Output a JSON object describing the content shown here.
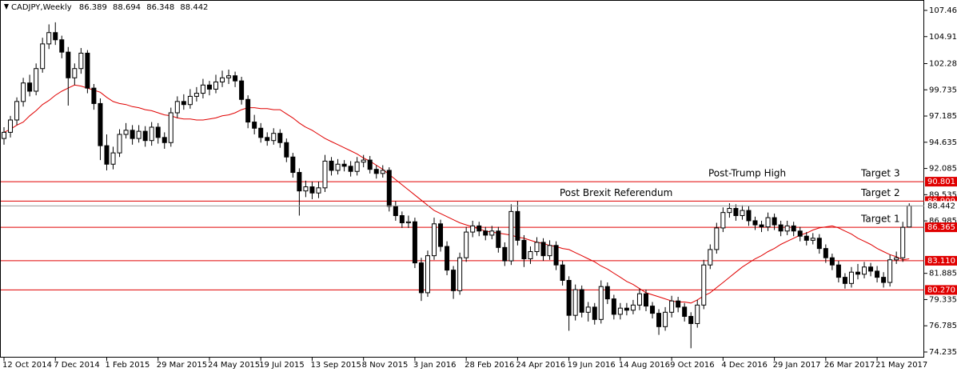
{
  "chart_data": {
    "type": "candlestick",
    "title": "CADJPY,Weekly",
    "ylim": [
      73.69,
      108.47
    ],
    "yticks": [
      {
        "value": 107.46,
        "label": "107.460"
      },
      {
        "value": 104.91,
        "label": "104.910"
      },
      102.285,
      99.735,
      97.185,
      94.635,
      92.085,
      89.535,
      86.985,
      81.885,
      79.335,
      76.785,
      74.235
    ],
    "categories": [
      "12 Oct 2014",
      null,
      null,
      null,
      null,
      null,
      null,
      null,
      "7 Dec 2014",
      null,
      null,
      null,
      null,
      null,
      null,
      null,
      "1 Feb 2015",
      null,
      null,
      null,
      null,
      null,
      null,
      null,
      "29 Mar 2015",
      null,
      null,
      null,
      null,
      null,
      null,
      null,
      "24 May 2015",
      null,
      null,
      null,
      null,
      null,
      null,
      null,
      "19 Jul 2015",
      null,
      null,
      null,
      null,
      null,
      null,
      null,
      "13 Sep 2015",
      null,
      null,
      null,
      null,
      null,
      null,
      null,
      "8 Nov 2015",
      null,
      null,
      null,
      null,
      null,
      null,
      null,
      "3 Jan 2016",
      null,
      null,
      null,
      null,
      null,
      null,
      null,
      "28 Feb 2016",
      null,
      null,
      null,
      null,
      null,
      null,
      null,
      "24 Apr 2016",
      null,
      null,
      null,
      null,
      null,
      null,
      null,
      "19 Jun 2016",
      null,
      null,
      null,
      null,
      null,
      null,
      null,
      "14 Aug 2016",
      null,
      null,
      null,
      null,
      null,
      null,
      null,
      "9 Oct 2016",
      null,
      null,
      null,
      null,
      null,
      null,
      null,
      "4 Dec 2016",
      null,
      null,
      null,
      null,
      null,
      null,
      null,
      "29 Jan 2017",
      null,
      null,
      null,
      null,
      null,
      null,
      null,
      "26 Mar 2017",
      null,
      null,
      null,
      null,
      null,
      null,
      null,
      "21 May 2017",
      null,
      null,
      null,
      null,
      null
    ],
    "ohlc": [
      [
        95.0,
        96.1,
        94.4,
        95.6
      ],
      [
        95.6,
        97.2,
        95.1,
        96.8
      ],
      [
        96.8,
        99.0,
        96.3,
        98.6
      ],
      [
        98.6,
        100.9,
        98.1,
        100.4
      ],
      [
        100.4,
        101.2,
        99.1,
        99.6
      ],
      [
        99.6,
        102.3,
        99.2,
        101.8
      ],
      [
        101.8,
        104.8,
        101.4,
        104.2
      ],
      [
        104.2,
        106.1,
        103.7,
        105.3
      ],
      [
        105.3,
        106.3,
        104.1,
        104.6
      ],
      [
        104.6,
        105.0,
        102.8,
        103.4
      ],
      [
        103.4,
        103.9,
        98.2,
        100.9
      ],
      [
        100.9,
        102.3,
        100.2,
        101.8
      ],
      [
        101.8,
        103.8,
        101.3,
        103.3
      ],
      [
        103.3,
        103.6,
        99.4,
        99.9
      ],
      [
        99.9,
        100.3,
        97.8,
        98.4
      ],
      [
        98.4,
        98.9,
        92.9,
        94.3
      ],
      [
        94.3,
        95.4,
        91.9,
        92.5
      ],
      [
        92.5,
        94.2,
        92.0,
        93.6
      ],
      [
        93.6,
        95.9,
        93.2,
        95.4
      ],
      [
        95.4,
        96.5,
        95.0,
        95.8
      ],
      [
        95.8,
        96.3,
        94.4,
        95.0
      ],
      [
        95.0,
        96.3,
        94.6,
        95.7
      ],
      [
        95.7,
        96.2,
        94.2,
        94.8
      ],
      [
        94.8,
        96.6,
        94.3,
        96.1
      ],
      [
        96.1,
        96.5,
        94.5,
        95.1
      ],
      [
        95.1,
        95.6,
        94.0,
        94.6
      ],
      [
        94.6,
        98.0,
        94.2,
        97.5
      ],
      [
        97.5,
        99.1,
        97.0,
        98.6
      ],
      [
        98.6,
        99.3,
        97.8,
        98.3
      ],
      [
        98.3,
        99.8,
        97.9,
        99.1
      ],
      [
        99.1,
        100.0,
        98.6,
        99.4
      ],
      [
        99.4,
        100.8,
        98.9,
        100.2
      ],
      [
        100.2,
        100.6,
        99.2,
        99.8
      ],
      [
        99.8,
        101.2,
        99.4,
        100.5
      ],
      [
        100.5,
        101.6,
        100.0,
        100.9
      ],
      [
        100.9,
        101.7,
        100.3,
        101.1
      ],
      [
        101.1,
        101.5,
        100.0,
        100.6
      ],
      [
        100.6,
        101.0,
        98.3,
        98.8
      ],
      [
        98.8,
        99.2,
        96.0,
        96.6
      ],
      [
        96.6,
        97.3,
        95.4,
        96.0
      ],
      [
        96.0,
        96.5,
        94.6,
        95.1
      ],
      [
        95.1,
        95.6,
        94.3,
        94.8
      ],
      [
        94.8,
        96.0,
        94.4,
        95.5
      ],
      [
        95.5,
        95.9,
        94.1,
        94.6
      ],
      [
        94.6,
        95.0,
        92.7,
        93.2
      ],
      [
        93.2,
        93.6,
        91.2,
        91.7
      ],
      [
        91.7,
        92.1,
        87.5,
        89.9
      ],
      [
        89.9,
        90.9,
        89.3,
        90.3
      ],
      [
        90.3,
        90.8,
        89.1,
        89.7
      ],
      [
        89.7,
        90.8,
        89.2,
        90.2
      ],
      [
        90.2,
        93.4,
        89.8,
        92.8
      ],
      [
        92.8,
        93.2,
        91.4,
        91.9
      ],
      [
        91.9,
        93.0,
        91.5,
        92.5
      ],
      [
        92.5,
        92.9,
        91.8,
        92.3
      ],
      [
        92.3,
        92.8,
        91.3,
        91.8
      ],
      [
        91.8,
        93.2,
        91.4,
        92.7
      ],
      [
        92.7,
        93.4,
        92.2,
        92.9
      ],
      [
        92.9,
        93.3,
        91.6,
        92.0
      ],
      [
        92.0,
        92.4,
        91.1,
        91.6
      ],
      [
        91.6,
        92.4,
        91.2,
        91.9
      ],
      [
        91.9,
        92.2,
        87.9,
        88.4
      ],
      [
        88.4,
        88.9,
        87.0,
        87.5
      ],
      [
        87.5,
        87.9,
        86.3,
        86.8
      ],
      [
        86.8,
        87.5,
        86.3,
        86.9
      ],
      [
        86.9,
        87.3,
        82.4,
        82.9
      ],
      [
        82.9,
        83.4,
        79.2,
        80.0
      ],
      [
        80.0,
        84.1,
        79.6,
        83.6
      ],
      [
        83.6,
        87.3,
        83.2,
        86.7
      ],
      [
        86.7,
        87.1,
        84.0,
        84.5
      ],
      [
        84.5,
        85.0,
        81.7,
        82.2
      ],
      [
        82.2,
        82.6,
        79.4,
        80.2
      ],
      [
        80.2,
        83.9,
        79.8,
        83.4
      ],
      [
        83.4,
        86.4,
        83.0,
        85.9
      ],
      [
        85.9,
        87.0,
        85.4,
        86.5
      ],
      [
        86.5,
        86.9,
        85.5,
        86.0
      ],
      [
        86.0,
        86.4,
        85.1,
        85.6
      ],
      [
        85.6,
        86.5,
        85.2,
        86.0
      ],
      [
        86.0,
        86.4,
        83.9,
        84.4
      ],
      [
        84.4,
        84.9,
        82.6,
        83.1
      ],
      [
        83.1,
        88.6,
        82.7,
        87.9
      ],
      [
        87.9,
        88.9,
        84.6,
        85.1
      ],
      [
        85.1,
        85.6,
        82.5,
        83.3
      ],
      [
        83.3,
        84.5,
        82.8,
        84.0
      ],
      [
        84.0,
        85.4,
        83.6,
        84.9
      ],
      [
        84.9,
        85.3,
        83.1,
        83.6
      ],
      [
        83.6,
        85.1,
        83.2,
        84.6
      ],
      [
        84.6,
        85.0,
        82.2,
        82.7
      ],
      [
        82.7,
        83.1,
        80.7,
        81.2
      ],
      [
        81.2,
        81.6,
        76.3,
        77.8
      ],
      [
        77.8,
        80.8,
        77.3,
        80.3
      ],
      [
        80.3,
        80.7,
        77.6,
        78.1
      ],
      [
        78.1,
        79.1,
        77.2,
        78.6
      ],
      [
        78.6,
        79.0,
        76.9,
        77.4
      ],
      [
        77.4,
        81.2,
        77.0,
        80.6
      ],
      [
        80.6,
        81.0,
        78.9,
        79.4
      ],
      [
        79.4,
        79.8,
        77.4,
        77.9
      ],
      [
        77.9,
        79.0,
        77.4,
        78.5
      ],
      [
        78.5,
        79.0,
        77.8,
        78.3
      ],
      [
        78.3,
        79.3,
        77.9,
        78.8
      ],
      [
        78.8,
        80.4,
        78.3,
        79.9
      ],
      [
        79.9,
        80.3,
        78.2,
        78.7
      ],
      [
        78.7,
        79.1,
        77.5,
        78.0
      ],
      [
        78.0,
        78.4,
        75.9,
        76.7
      ],
      [
        76.7,
        78.6,
        76.3,
        78.1
      ],
      [
        78.1,
        79.7,
        77.6,
        79.2
      ],
      [
        79.2,
        79.6,
        78.1,
        78.6
      ],
      [
        78.6,
        79.0,
        77.2,
        77.7
      ],
      [
        77.7,
        78.1,
        74.6,
        77.0
      ],
      [
        77.0,
        79.3,
        76.6,
        78.8
      ],
      [
        78.8,
        83.2,
        78.4,
        82.7
      ],
      [
        82.7,
        84.7,
        82.3,
        84.2
      ],
      [
        84.2,
        86.8,
        83.8,
        86.3
      ],
      [
        86.3,
        88.3,
        85.9,
        87.8
      ],
      [
        87.8,
        88.7,
        87.3,
        88.2
      ],
      [
        88.2,
        88.6,
        87.0,
        87.5
      ],
      [
        87.5,
        88.5,
        87.1,
        88.0
      ],
      [
        88.0,
        88.4,
        86.5,
        87.0
      ],
      [
        87.0,
        87.4,
        86.1,
        86.6
      ],
      [
        86.6,
        87.0,
        85.9,
        86.4
      ],
      [
        86.4,
        87.8,
        86.0,
        87.3
      ],
      [
        87.3,
        87.7,
        86.1,
        86.6
      ],
      [
        86.6,
        87.0,
        85.5,
        86.0
      ],
      [
        86.0,
        87.0,
        85.6,
        86.5
      ],
      [
        86.5,
        86.9,
        85.5,
        86.0
      ],
      [
        86.0,
        86.4,
        85.0,
        85.5
      ],
      [
        85.5,
        85.9,
        84.6,
        85.1
      ],
      [
        85.1,
        85.8,
        84.7,
        85.3
      ],
      [
        85.3,
        85.7,
        83.8,
        84.3
      ],
      [
        84.3,
        84.7,
        82.9,
        83.4
      ],
      [
        83.4,
        83.8,
        82.2,
        82.7
      ],
      [
        82.7,
        83.1,
        81.0,
        81.5
      ],
      [
        81.5,
        81.9,
        80.4,
        80.9
      ],
      [
        80.9,
        82.5,
        80.5,
        82.0
      ],
      [
        82.0,
        82.8,
        81.3,
        81.8
      ],
      [
        81.8,
        83.0,
        81.4,
        82.5
      ],
      [
        82.5,
        82.9,
        81.6,
        82.1
      ],
      [
        82.1,
        82.6,
        81.0,
        81.5
      ],
      [
        81.5,
        82.0,
        80.5,
        81.0
      ],
      [
        81.0,
        83.7,
        80.6,
        83.2
      ],
      [
        83.2,
        84.0,
        82.8,
        83.4
      ],
      [
        83.4,
        86.9,
        83.0,
        86.36
      ],
      [
        86.389,
        88.694,
        86.348,
        88.442
      ]
    ],
    "up_color": "#ffffff",
    "down_color": "#000000",
    "moving_average": {
      "color": "#e00000",
      "values": [
        95.6,
        95.9,
        96.3,
        96.6,
        97.2,
        97.7,
        98.3,
        98.7,
        99.2,
        99.6,
        99.9,
        100.2,
        100.1,
        99.9,
        99.7,
        99.5,
        99.0,
        98.6,
        98.4,
        98.3,
        98.1,
        98.0,
        97.8,
        97.7,
        97.5,
        97.3,
        97.2,
        97.0,
        96.9,
        96.9,
        96.8,
        96.8,
        96.9,
        97.0,
        97.2,
        97.3,
        97.5,
        97.8,
        98.0,
        98.0,
        97.9,
        97.9,
        97.8,
        97.8,
        97.4,
        97.0,
        96.5,
        96.1,
        95.8,
        95.4,
        95.0,
        94.7,
        94.4,
        94.1,
        93.8,
        93.5,
        93.1,
        92.8,
        92.4,
        92.0,
        91.5,
        91.0,
        90.5,
        90.0,
        89.5,
        89.0,
        88.5,
        88.0,
        87.7,
        87.4,
        87.1,
        86.8,
        86.6,
        86.4,
        86.2,
        86.0,
        85.9,
        85.8,
        85.7,
        85.6,
        85.4,
        85.3,
        85.1,
        84.9,
        84.8,
        84.6,
        84.5,
        84.3,
        84.2,
        83.9,
        83.6,
        83.3,
        83.0,
        82.6,
        82.3,
        81.9,
        81.5,
        81.1,
        80.8,
        80.4,
        80.0,
        79.8,
        79.6,
        79.4,
        79.2,
        79.1,
        79.1,
        79.0,
        79.3,
        79.7,
        80.0,
        80.5,
        81.0,
        81.5,
        82.0,
        82.5,
        82.9,
        83.3,
        83.6,
        84.0,
        84.3,
        84.7,
        85.0,
        85.3,
        85.6,
        85.8,
        86.1,
        86.3,
        86.4,
        86.5,
        86.3,
        86.0,
        85.7,
        85.3,
        85.0,
        84.7,
        84.3,
        84.0,
        83.7,
        83.5,
        83.2,
        83.3
      ]
    },
    "level_color": "#e00000",
    "levels": [
      {
        "value": 90.801,
        "note": "Post-Trump High",
        "target": "Target 3"
      },
      {
        "value": 88.909,
        "note": "Post Brexit Referendum",
        "target": "Target 2"
      },
      {
        "value": 86.365,
        "target": "Target 1"
      },
      {
        "value": 83.11,
        "label": "83.110"
      },
      {
        "value": 80.27,
        "label": "80.270"
      }
    ]
  }
}
